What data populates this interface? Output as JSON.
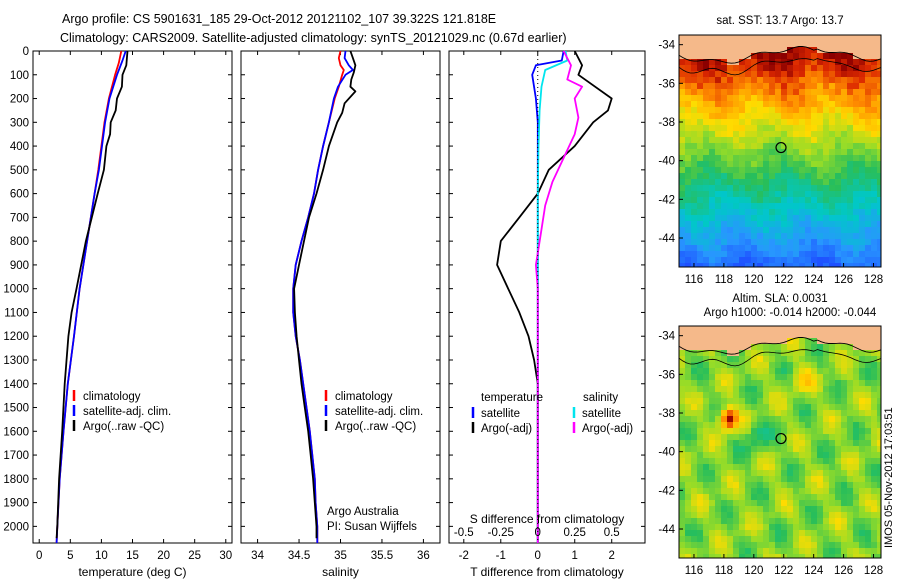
{
  "header": {
    "title_line1": "Argo profile: CS 5901631_185 29-Oct-2012 20121102_107 39.322S 121.818E",
    "title_line2": "Climatology: CARS2009. Satellite-adjusted climatology: synTS_20121029.nc (0.67d earlier)"
  },
  "colors": {
    "climatology": "#ff0000",
    "satellite": "#0000ff",
    "argo": "#000000",
    "sat_salinity": "#00e5ee",
    "argo_salinity_adj": "#ff00ff",
    "land": "#f5b98a"
  },
  "chart_data": [
    {
      "type": "line",
      "id": "temperature",
      "xlabel": "temperature (deg C)",
      "xlim": [
        -1,
        31
      ],
      "xticks": [
        0,
        5,
        10,
        15,
        20,
        25,
        30
      ],
      "ylim": [
        0,
        2070
      ],
      "yticks": [
        0,
        100,
        200,
        300,
        400,
        500,
        600,
        700,
        800,
        900,
        1000,
        1100,
        1200,
        1300,
        1400,
        1500,
        1600,
        1700,
        1800,
        1900,
        2000
      ],
      "y_reversed": true,
      "legend_position": "lower-center",
      "legend": [
        "climatology",
        "satellite-adj. clim.",
        "Argo(..raw -QC)"
      ],
      "series": [
        {
          "name": "climatology",
          "color": "#ff0000",
          "points": [
            [
              13.2,
              0
            ],
            [
              12.8,
              50
            ],
            [
              12.2,
              100
            ],
            [
              11.2,
              200
            ],
            [
              10.5,
              300
            ],
            [
              10.0,
              400
            ],
            [
              9.5,
              500
            ],
            [
              8.9,
              600
            ],
            [
              7.7,
              800
            ],
            [
              6.5,
              1000
            ],
            [
              5.6,
              1200
            ],
            [
              4.6,
              1400
            ],
            [
              3.9,
              1600
            ],
            [
              3.3,
              1800
            ],
            [
              2.9,
              2000
            ],
            [
              2.8,
              2070
            ]
          ]
        },
        {
          "name": "satellite-adj. clim.",
          "color": "#0000ff",
          "points": [
            [
              13.9,
              0
            ],
            [
              13.4,
              40
            ],
            [
              12.5,
              100
            ],
            [
              11.3,
              200
            ],
            [
              10.6,
              300
            ],
            [
              10.1,
              400
            ],
            [
              9.6,
              500
            ],
            [
              8.9,
              600
            ],
            [
              7.7,
              800
            ],
            [
              6.5,
              1000
            ],
            [
              5.6,
              1200
            ],
            [
              4.6,
              1400
            ],
            [
              3.9,
              1600
            ],
            [
              3.3,
              1800
            ],
            [
              2.9,
              2000
            ],
            [
              2.8,
              2070
            ]
          ]
        },
        {
          "name": "Argo(..raw -QC)",
          "color": "#000000",
          "points": [
            [
              14.2,
              0
            ],
            [
              14.0,
              60
            ],
            [
              13.4,
              100
            ],
            [
              13.3,
              150
            ],
            [
              12.5,
              200
            ],
            [
              12.3,
              250
            ],
            [
              11.5,
              300
            ],
            [
              11.4,
              350
            ],
            [
              10.8,
              400
            ],
            [
              10.4,
              500
            ],
            [
              9.4,
              600
            ],
            [
              7.5,
              800
            ],
            [
              6.0,
              1000
            ],
            [
              5.2,
              1100
            ],
            [
              4.7,
              1200
            ],
            [
              4.1,
              1400
            ],
            [
              3.7,
              1600
            ],
            [
              3.2,
              1800
            ],
            [
              2.9,
              2000
            ],
            [
              2.8,
              2050
            ]
          ]
        }
      ]
    },
    {
      "type": "line",
      "id": "salinity",
      "xlabel": "salinity",
      "xlim": [
        33.8,
        36.2
      ],
      "xticks": [
        34,
        34.5,
        35,
        35.5,
        36
      ],
      "ylim": [
        0,
        2070
      ],
      "y_reversed": true,
      "legend_position": "lower-right",
      "legend": [
        "climatology",
        "satellite-adj. clim.",
        "Argo(..raw -QC)"
      ],
      "annotation": [
        "Argo Australia",
        "PI: Susan Wijffels"
      ],
      "series": [
        {
          "name": "climatology",
          "color": "#ff0000",
          "points": [
            [
              35.0,
              0
            ],
            [
              34.98,
              30
            ],
            [
              35.0,
              60
            ],
            [
              35.04,
              80
            ],
            [
              35.02,
              100
            ],
            [
              34.98,
              150
            ],
            [
              34.93,
              200
            ],
            [
              34.86,
              300
            ],
            [
              34.79,
              400
            ],
            [
              34.73,
              500
            ],
            [
              34.68,
              600
            ],
            [
              34.61,
              700
            ],
            [
              34.53,
              800
            ],
            [
              34.46,
              900
            ],
            [
              34.43,
              1000
            ],
            [
              34.43,
              1100
            ],
            [
              34.46,
              1200
            ],
            [
              34.51,
              1300
            ],
            [
              34.55,
              1400
            ],
            [
              34.59,
              1500
            ],
            [
              34.63,
              1600
            ],
            [
              34.66,
              1700
            ],
            [
              34.69,
              1800
            ],
            [
              34.7,
              1900
            ],
            [
              34.72,
              2000
            ],
            [
              34.72,
              2070
            ]
          ]
        },
        {
          "name": "satellite-adj. clim.",
          "color": "#0000ff",
          "points": [
            [
              35.06,
              0
            ],
            [
              35.05,
              30
            ],
            [
              35.1,
              60
            ],
            [
              35.15,
              80
            ],
            [
              35.06,
              100
            ],
            [
              34.97,
              150
            ],
            [
              34.92,
              200
            ],
            [
              34.86,
              300
            ],
            [
              34.79,
              400
            ],
            [
              34.73,
              500
            ],
            [
              34.68,
              600
            ],
            [
              34.61,
              700
            ],
            [
              34.53,
              800
            ],
            [
              34.46,
              900
            ],
            [
              34.43,
              1000
            ],
            [
              34.43,
              1100
            ],
            [
              34.46,
              1200
            ],
            [
              34.51,
              1300
            ],
            [
              34.55,
              1400
            ],
            [
              34.59,
              1500
            ],
            [
              34.63,
              1600
            ],
            [
              34.66,
              1700
            ],
            [
              34.69,
              1800
            ],
            [
              34.7,
              1900
            ],
            [
              34.72,
              2000
            ],
            [
              34.72,
              2070
            ]
          ]
        },
        {
          "name": "Argo(..raw -QC)",
          "color": "#000000",
          "points": [
            [
              35.12,
              0
            ],
            [
              35.15,
              30
            ],
            [
              35.18,
              60
            ],
            [
              35.16,
              90
            ],
            [
              35.13,
              120
            ],
            [
              35.12,
              150
            ],
            [
              35.18,
              170
            ],
            [
              35.05,
              220
            ],
            [
              35.02,
              260
            ],
            [
              34.96,
              300
            ],
            [
              34.86,
              400
            ],
            [
              34.79,
              500
            ],
            [
              34.71,
              600
            ],
            [
              34.62,
              700
            ],
            [
              34.56,
              800
            ],
            [
              34.5,
              900
            ],
            [
              34.44,
              1000
            ],
            [
              34.45,
              1100
            ],
            [
              34.47,
              1200
            ],
            [
              34.5,
              1300
            ],
            [
              34.53,
              1400
            ],
            [
              34.57,
              1500
            ],
            [
              34.61,
              1600
            ],
            [
              34.64,
              1700
            ],
            [
              34.67,
              1800
            ],
            [
              34.69,
              1900
            ],
            [
              34.71,
              2000
            ],
            [
              34.71,
              2050
            ]
          ]
        }
      ]
    },
    {
      "type": "line",
      "id": "difference",
      "xlabel": "T difference from climatology",
      "xlabel_top": "S difference from climatology",
      "xlim": [
        -2.4,
        2.9
      ],
      "xticks": [
        -2,
        -1,
        0,
        1,
        2
      ],
      "xticks_s": [
        -0.5,
        -0.25,
        0,
        0.25,
        0.5
      ],
      "xtick_s_labels": [
        "-0.5",
        "-0.25",
        "0",
        "0.25",
        "0.5"
      ],
      "ylim": [
        0,
        2070
      ],
      "y_reversed": true,
      "legend_position": "lower",
      "legend_titles": [
        "temperature",
        "salinity"
      ],
      "legend_temperature": [
        "satellite",
        "Argo(-adj)"
      ],
      "legend_salinity": [
        "satellite",
        "Argo(-adj)"
      ],
      "series": [
        {
          "name": "T satellite",
          "color": "#0000ff",
          "points": [
            [
              0.7,
              0
            ],
            [
              0.65,
              40
            ],
            [
              -0.05,
              60
            ],
            [
              -0.15,
              100
            ],
            [
              -0.05,
              200
            ],
            [
              0,
              300
            ],
            [
              0,
              400
            ],
            [
              0,
              500
            ],
            [
              0,
              600
            ],
            [
              0,
              1000
            ],
            [
              0,
              2070
            ]
          ]
        },
        {
          "name": "T Argo(-adj)",
          "color": "#000000",
          "points": [
            [
              1.0,
              0
            ],
            [
              1.2,
              60
            ],
            [
              1.1,
              100
            ],
            [
              2.0,
              200
            ],
            [
              1.9,
              250
            ],
            [
              1.5,
              300
            ],
            [
              1.0,
              400
            ],
            [
              0.3,
              500
            ],
            [
              0.0,
              600
            ],
            [
              -0.5,
              700
            ],
            [
              -1.0,
              800
            ],
            [
              -1.1,
              900
            ],
            [
              -0.8,
              1000
            ],
            [
              -0.5,
              1100
            ],
            [
              -0.25,
              1200
            ],
            [
              -0.1,
              1300
            ],
            [
              0,
              1400
            ],
            [
              0,
              2070
            ]
          ]
        },
        {
          "name": "S satellite",
          "color": "#00e5ee",
          "points": [
            [
              0.75,
              0
            ],
            [
              0.8,
              40
            ],
            [
              0.2,
              80
            ],
            [
              0.1,
              150
            ],
            [
              0.05,
              250
            ],
            [
              0.02,
              400
            ],
            [
              0,
              600
            ],
            [
              0,
              2070
            ]
          ]
        },
        {
          "name": "S Argo(-adj)",
          "color": "#ff00ff",
          "points": [
            [
              0.7,
              0
            ],
            [
              0.9,
              60
            ],
            [
              0.8,
              120
            ],
            [
              1.2,
              150
            ],
            [
              1.0,
              200
            ],
            [
              1.1,
              280
            ],
            [
              1.0,
              350
            ],
            [
              0.7,
              450
            ],
            [
              0.4,
              550
            ],
            [
              0.2,
              650
            ],
            [
              0.1,
              750
            ],
            [
              0.0,
              850
            ],
            [
              -0.05,
              900
            ],
            [
              0.0,
              1000
            ],
            [
              0,
              2070
            ]
          ]
        }
      ]
    },
    {
      "type": "heatmap",
      "id": "sst_map",
      "title": "sat. SST: 13.7 Argo: 13.7",
      "xlim": [
        115,
        128.5
      ],
      "xticks": [
        116,
        118,
        120,
        122,
        124,
        126,
        128
      ],
      "ylim": [
        -45.5,
        -33.5
      ],
      "yticks": [
        -34,
        -36,
        -38,
        -40,
        -42,
        -44
      ],
      "argo_marker": {
        "lon": 121.818,
        "lat": -39.322
      }
    },
    {
      "type": "heatmap",
      "id": "sla_map",
      "title_line1": "Altim. SLA: 0.0031",
      "title_line2": "Argo h1000: -0.014 h2000: -0.044",
      "xlim": [
        115,
        128.5
      ],
      "xticks": [
        116,
        118,
        120,
        122,
        124,
        126,
        128
      ],
      "ylim": [
        -45.5,
        -33.5
      ],
      "yticks": [
        -34,
        -36,
        -38,
        -40,
        -42,
        -44
      ],
      "argo_marker": {
        "lon": 121.818,
        "lat": -39.322
      }
    }
  ],
  "footer": {
    "stamp": "IMOS 05-Nov-2012 17:03:51"
  }
}
